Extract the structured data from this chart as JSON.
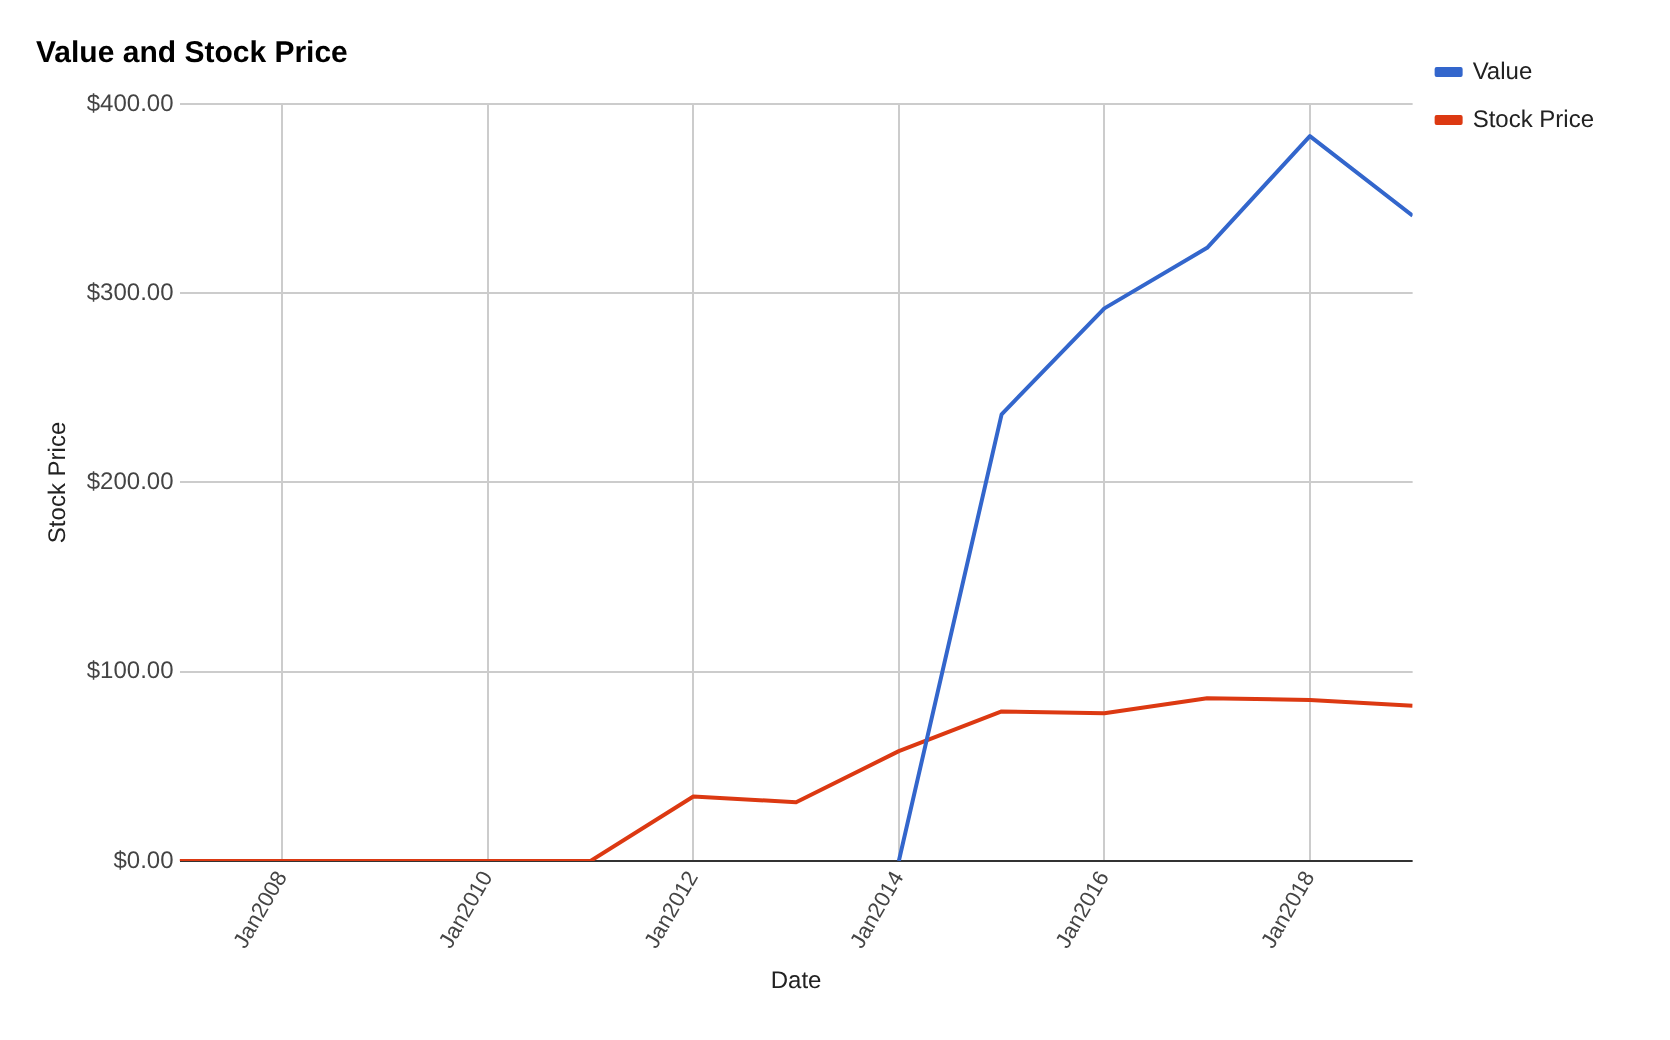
{
  "chart_data": {
    "type": "line",
    "title": "Value and Stock Price",
    "xlabel": "Date",
    "ylabel": "Stock Price",
    "x": [
      "2007-01",
      "2008-01",
      "2009-01",
      "2010-01",
      "2011-01",
      "2012-01",
      "2013-01",
      "2014-01",
      "2015-01",
      "2016-01",
      "2017-01",
      "2018-01",
      "2019-01"
    ],
    "series": [
      {
        "name": "Value",
        "color": "#3366cc",
        "values": [
          null,
          null,
          null,
          null,
          null,
          null,
          null,
          0,
          236,
          292,
          324,
          383,
          341
        ]
      },
      {
        "name": "Stock Price",
        "color": "#dc3912",
        "values": [
          0,
          0,
          0,
          0,
          0,
          34,
          31,
          58,
          79,
          78,
          86,
          85,
          82
        ]
      }
    ],
    "xlim": [
      "2007-01",
      "2019-01"
    ],
    "xticks": [
      {
        "value": "2008-01",
        "label": "Jan2008"
      },
      {
        "value": "2010-01",
        "label": "Jan2010"
      },
      {
        "value": "2012-01",
        "label": "Jan2012"
      },
      {
        "value": "2014-01",
        "label": "Jan2014"
      },
      {
        "value": "2016-01",
        "label": "Jan2016"
      },
      {
        "value": "2018-01",
        "label": "Jan2018"
      }
    ],
    "ylim": [
      0,
      400
    ],
    "yticks": [
      {
        "value": 0,
        "label": "$0.00"
      },
      {
        "value": 100,
        "label": "$100.00"
      },
      {
        "value": 200,
        "label": "$200.00"
      },
      {
        "value": 300,
        "label": "$300.00"
      },
      {
        "value": 400,
        "label": "$400.00"
      }
    ],
    "grid": true,
    "legend": "top right",
    "marker": "none",
    "line_style": "solid"
  }
}
